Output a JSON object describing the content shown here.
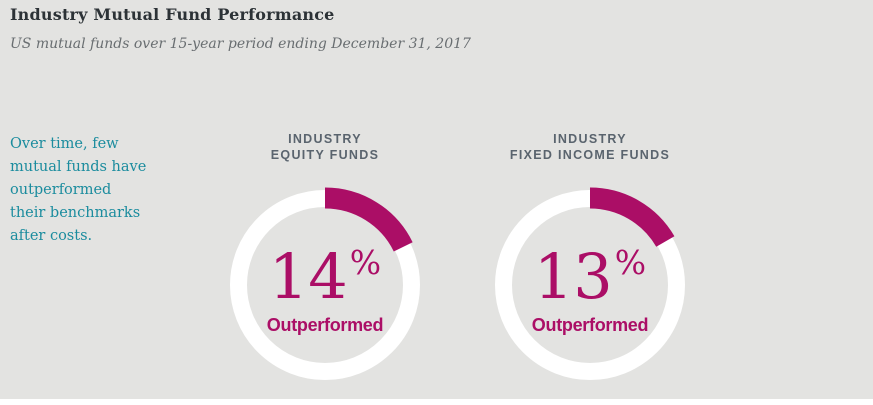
{
  "header": {
    "title": "Industry Mutual Fund Performance",
    "subtitle": "US mutual funds over 15-year period ending December 31, 2017"
  },
  "callout": {
    "lines": [
      "Over time, few",
      "mutual funds have",
      "outperformed",
      "their benchmarks",
      "after costs."
    ]
  },
  "colors": {
    "panel_background": "#e3e3e1",
    "title_text": "#2c3236",
    "subtitle_text": "#696e71",
    "callout_text": "#1b8c9e",
    "chart_label_text": "#5a646e",
    "accent_magenta": "#ab0e66",
    "ring_white": "#ffffff"
  },
  "chart_data": [
    {
      "type": "pie",
      "variant": "donut",
      "title_line1": "INDUSTRY",
      "title_line2": "EQUITY FUNDS",
      "value": 14,
      "value_label": "14",
      "unit": "%",
      "caption": "Outperformed",
      "arc_start": "top",
      "arc_direction": "clockwise",
      "sweep_deg": 64,
      "arc_color": "#ab0e66",
      "ring_color": "#ffffff"
    },
    {
      "type": "pie",
      "variant": "donut",
      "title_line1": "INDUSTRY",
      "title_line2": "FIXED INCOME FUNDS",
      "value": 13,
      "value_label": "13",
      "unit": "%",
      "caption": "Outperformed",
      "arc_start": "top",
      "arc_direction": "clockwise",
      "sweep_deg": 60,
      "arc_color": "#ab0e66",
      "ring_color": "#ffffff"
    }
  ]
}
